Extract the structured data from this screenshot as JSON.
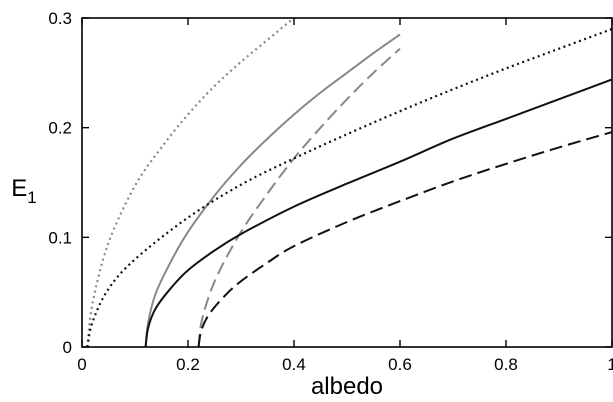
{
  "chart_data": {
    "type": "line",
    "xlabel": "albedo",
    "ylabel": "E",
    "ylabel_subscript": "1",
    "xlim": [
      0,
      1
    ],
    "ylim": [
      0,
      0.3
    ],
    "xticks": [
      0,
      0.2,
      0.4,
      0.6,
      0.8,
      1
    ],
    "xtick_labels": [
      "0",
      "0.2",
      "0.4",
      "0.6",
      "0.8",
      "1"
    ],
    "yticks": [
      0,
      0.1,
      0.2,
      0.3
    ],
    "ytick_labels": [
      "0",
      "0.1",
      "0.2",
      "0.3"
    ],
    "grid": false,
    "legend": "none",
    "series": [
      {
        "color": "#888888",
        "dash": "dotted",
        "x": [
          0.01,
          0.02,
          0.05,
          0.1,
          0.15,
          0.2,
          0.25,
          0.3,
          0.35,
          0.4,
          0.45
        ],
        "y": [
          0.0,
          0.04,
          0.095,
          0.147,
          0.182,
          0.212,
          0.238,
          0.26,
          0.28,
          0.3,
          0.318
        ]
      },
      {
        "color": "#888888",
        "dash": "solid",
        "x": [
          0.12,
          0.125,
          0.14,
          0.17,
          0.2,
          0.25,
          0.3,
          0.35,
          0.4,
          0.45,
          0.5,
          0.55,
          0.6
        ],
        "y": [
          0.0,
          0.023,
          0.05,
          0.08,
          0.105,
          0.138,
          0.166,
          0.19,
          0.212,
          0.232,
          0.25,
          0.268,
          0.285
        ]
      },
      {
        "color": "#888888",
        "dash": "dashed",
        "x": [
          0.22,
          0.225,
          0.24,
          0.26,
          0.3,
          0.35,
          0.4,
          0.45,
          0.5,
          0.55,
          0.6
        ],
        "y": [
          0.0,
          0.022,
          0.047,
          0.07,
          0.105,
          0.14,
          0.172,
          0.2,
          0.226,
          0.25,
          0.272
        ]
      },
      {
        "color": "#111111",
        "dash": "dotted",
        "x": [
          0.01,
          0.02,
          0.05,
          0.1,
          0.2,
          0.3,
          0.4,
          0.5,
          0.6,
          0.7,
          0.8,
          0.9,
          1.0
        ],
        "y": [
          0.0,
          0.023,
          0.053,
          0.08,
          0.118,
          0.148,
          0.172,
          0.194,
          0.215,
          0.235,
          0.254,
          0.272,
          0.29
        ]
      },
      {
        "color": "#111111",
        "dash": "solid",
        "x": [
          0.12,
          0.125,
          0.14,
          0.17,
          0.2,
          0.25,
          0.3,
          0.4,
          0.5,
          0.6,
          0.7,
          0.8,
          0.9,
          1.0
        ],
        "y": [
          0.0,
          0.018,
          0.036,
          0.055,
          0.07,
          0.088,
          0.103,
          0.128,
          0.149,
          0.169,
          0.19,
          0.208,
          0.226,
          0.244
        ]
      },
      {
        "color": "#111111",
        "dash": "dashed",
        "x": [
          0.22,
          0.225,
          0.24,
          0.27,
          0.3,
          0.35,
          0.4,
          0.5,
          0.6,
          0.7,
          0.8,
          0.9,
          1.0
        ],
        "y": [
          0.0,
          0.015,
          0.03,
          0.047,
          0.06,
          0.077,
          0.092,
          0.114,
          0.133,
          0.151,
          0.167,
          0.182,
          0.196
        ]
      }
    ]
  }
}
